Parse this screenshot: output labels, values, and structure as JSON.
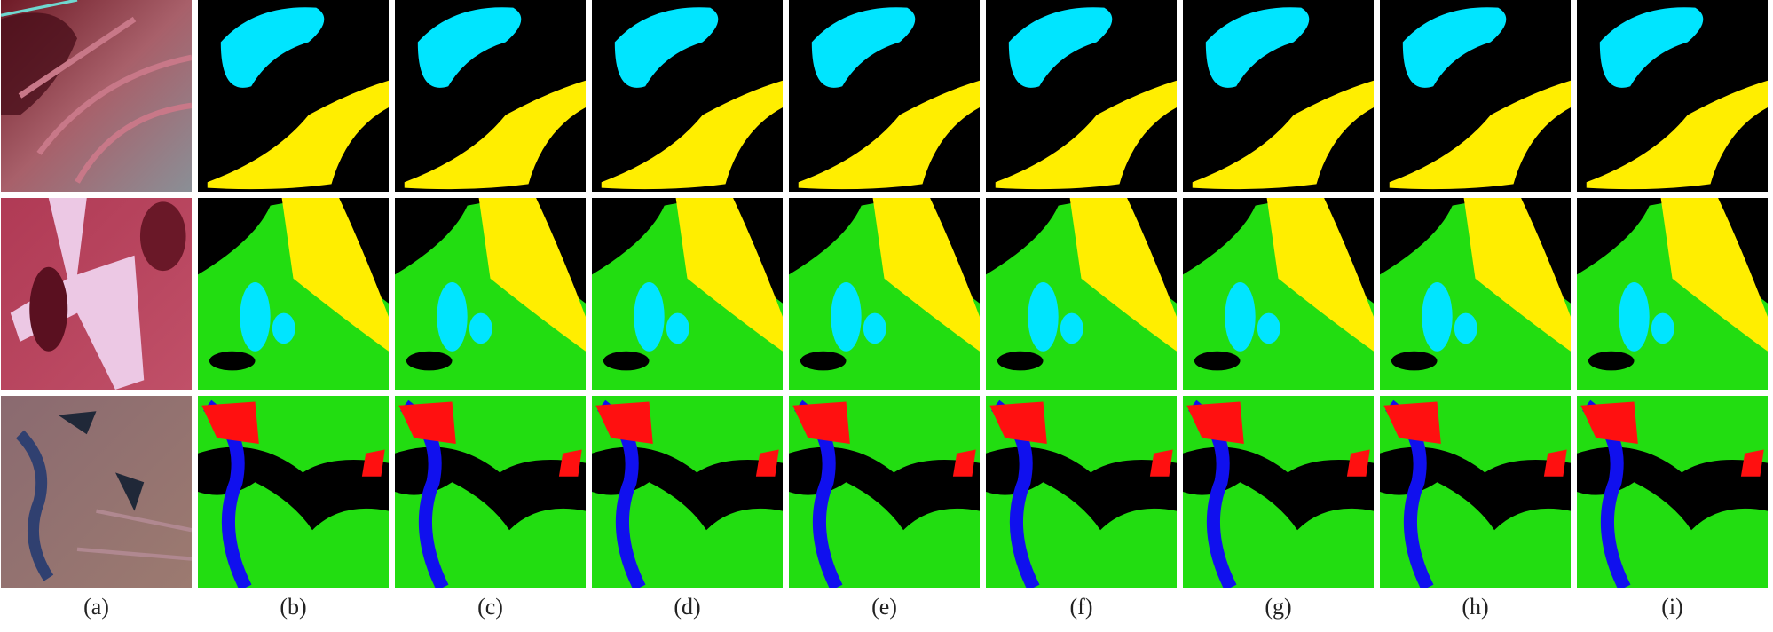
{
  "labels": [
    "(a)",
    "(b)",
    "(c)",
    "(d)",
    "(e)",
    "(f)",
    "(g)",
    "(h)",
    "(i)"
  ]
}
